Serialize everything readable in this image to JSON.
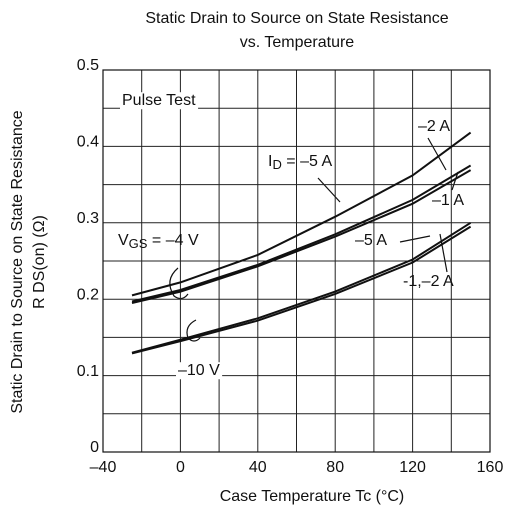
{
  "chart_data": {
    "type": "line",
    "title": [
      "Static Drain to Source on State Resistance",
      "vs. Temperature"
    ],
    "y_label": [
      "Static Drain to Source on State Resistance",
      "R DS(on)  (Ω)"
    ],
    "x_label": "Case Temperature    Tc    (°C)",
    "x": [
      -25,
      0,
      40,
      80,
      120,
      150
    ],
    "series": [
      {
        "color": "#111111",
        "values": [
          0.205,
          0.222,
          0.258,
          0.308,
          0.362,
          0.418
        ]
      },
      {
        "color": "#111111",
        "values": [
          0.197,
          0.212,
          0.245,
          0.285,
          0.33,
          0.375
        ]
      },
      {
        "color": "#111111",
        "values": [
          0.195,
          0.21,
          0.243,
          0.282,
          0.325,
          0.369
        ]
      },
      {
        "color": "#111111",
        "values": [
          0.13,
          0.147,
          0.175,
          0.21,
          0.252,
          0.3
        ]
      },
      {
        "color": "#111111",
        "values": [
          0.129,
          0.145,
          0.172,
          0.207,
          0.248,
          0.295
        ]
      }
    ],
    "annotations": [
      {
        "parts": [
          "Pulse Test"
        ]
      },
      {
        "parts": [
          "I",
          "D",
          " = –5 A"
        ]
      },
      {
        "parts": [
          "–2 A"
        ]
      },
      {
        "parts": [
          "–1 A"
        ]
      },
      {
        "parts": [
          "V",
          "GS",
          " = –4 V"
        ]
      },
      {
        "parts": [
          "–5 A"
        ]
      },
      {
        "parts": [
          "-1,–2 A"
        ]
      },
      {
        "parts": [
          "–10 V"
        ]
      }
    ],
    "xlim": [
      -40,
      160
    ],
    "xticks": [
      {
        "value": -40,
        "label": "–40"
      },
      0,
      40,
      80,
      120,
      160
    ],
    "x_minor_ticks": [
      -20,
      20,
      60,
      100,
      140
    ],
    "ylim": [
      0,
      0.5
    ],
    "yticks": [
      0,
      0.1,
      0.2,
      0.3,
      0.4,
      0.5
    ],
    "y_minor_ticks": [
      0.05,
      0.15,
      0.25,
      0.35,
      0.45
    ],
    "grid": true
  }
}
